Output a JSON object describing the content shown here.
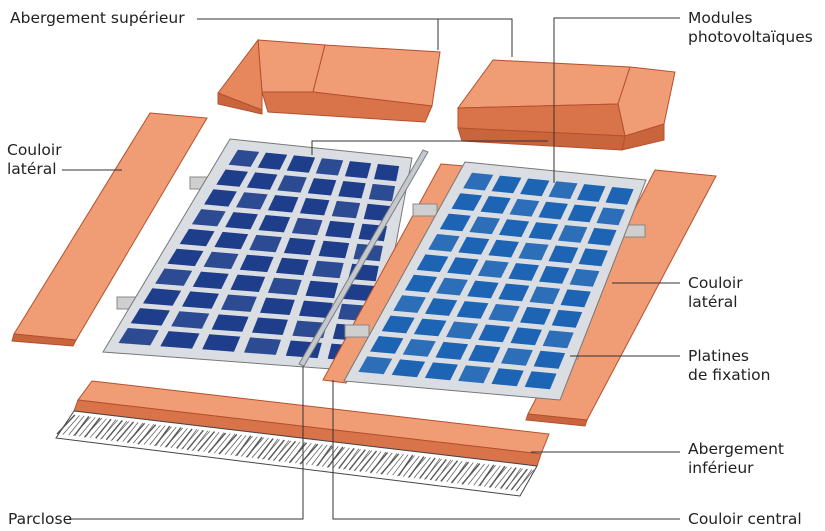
{
  "labels": {
    "abergement_superieur": "Abergement supérieur",
    "modules_line1": "Modules",
    "modules_line2": "photovoltaïques",
    "couloir_lateral_left_line1": "Couloir",
    "couloir_lateral_left_line2": "latéral",
    "couloir_lateral_right_line1": "Couloir",
    "couloir_lateral_right_line2": "latéral",
    "platines_line1": "Platines",
    "platines_line2": "de fixation",
    "abergement_inferieur_line1": "Abergement",
    "abergement_inferieur_line2": "inférieur",
    "parclose": "Parclose",
    "couloir_central": "Couloir central"
  },
  "colors": {
    "flashing": "#F09C74",
    "flashing_dark": "#D9744A",
    "flashing_edge": "#B5502E",
    "panel_left": "#1E3E8C",
    "panel_right": "#1E64B4",
    "frame": "#DADDE2",
    "line": "#333333"
  }
}
